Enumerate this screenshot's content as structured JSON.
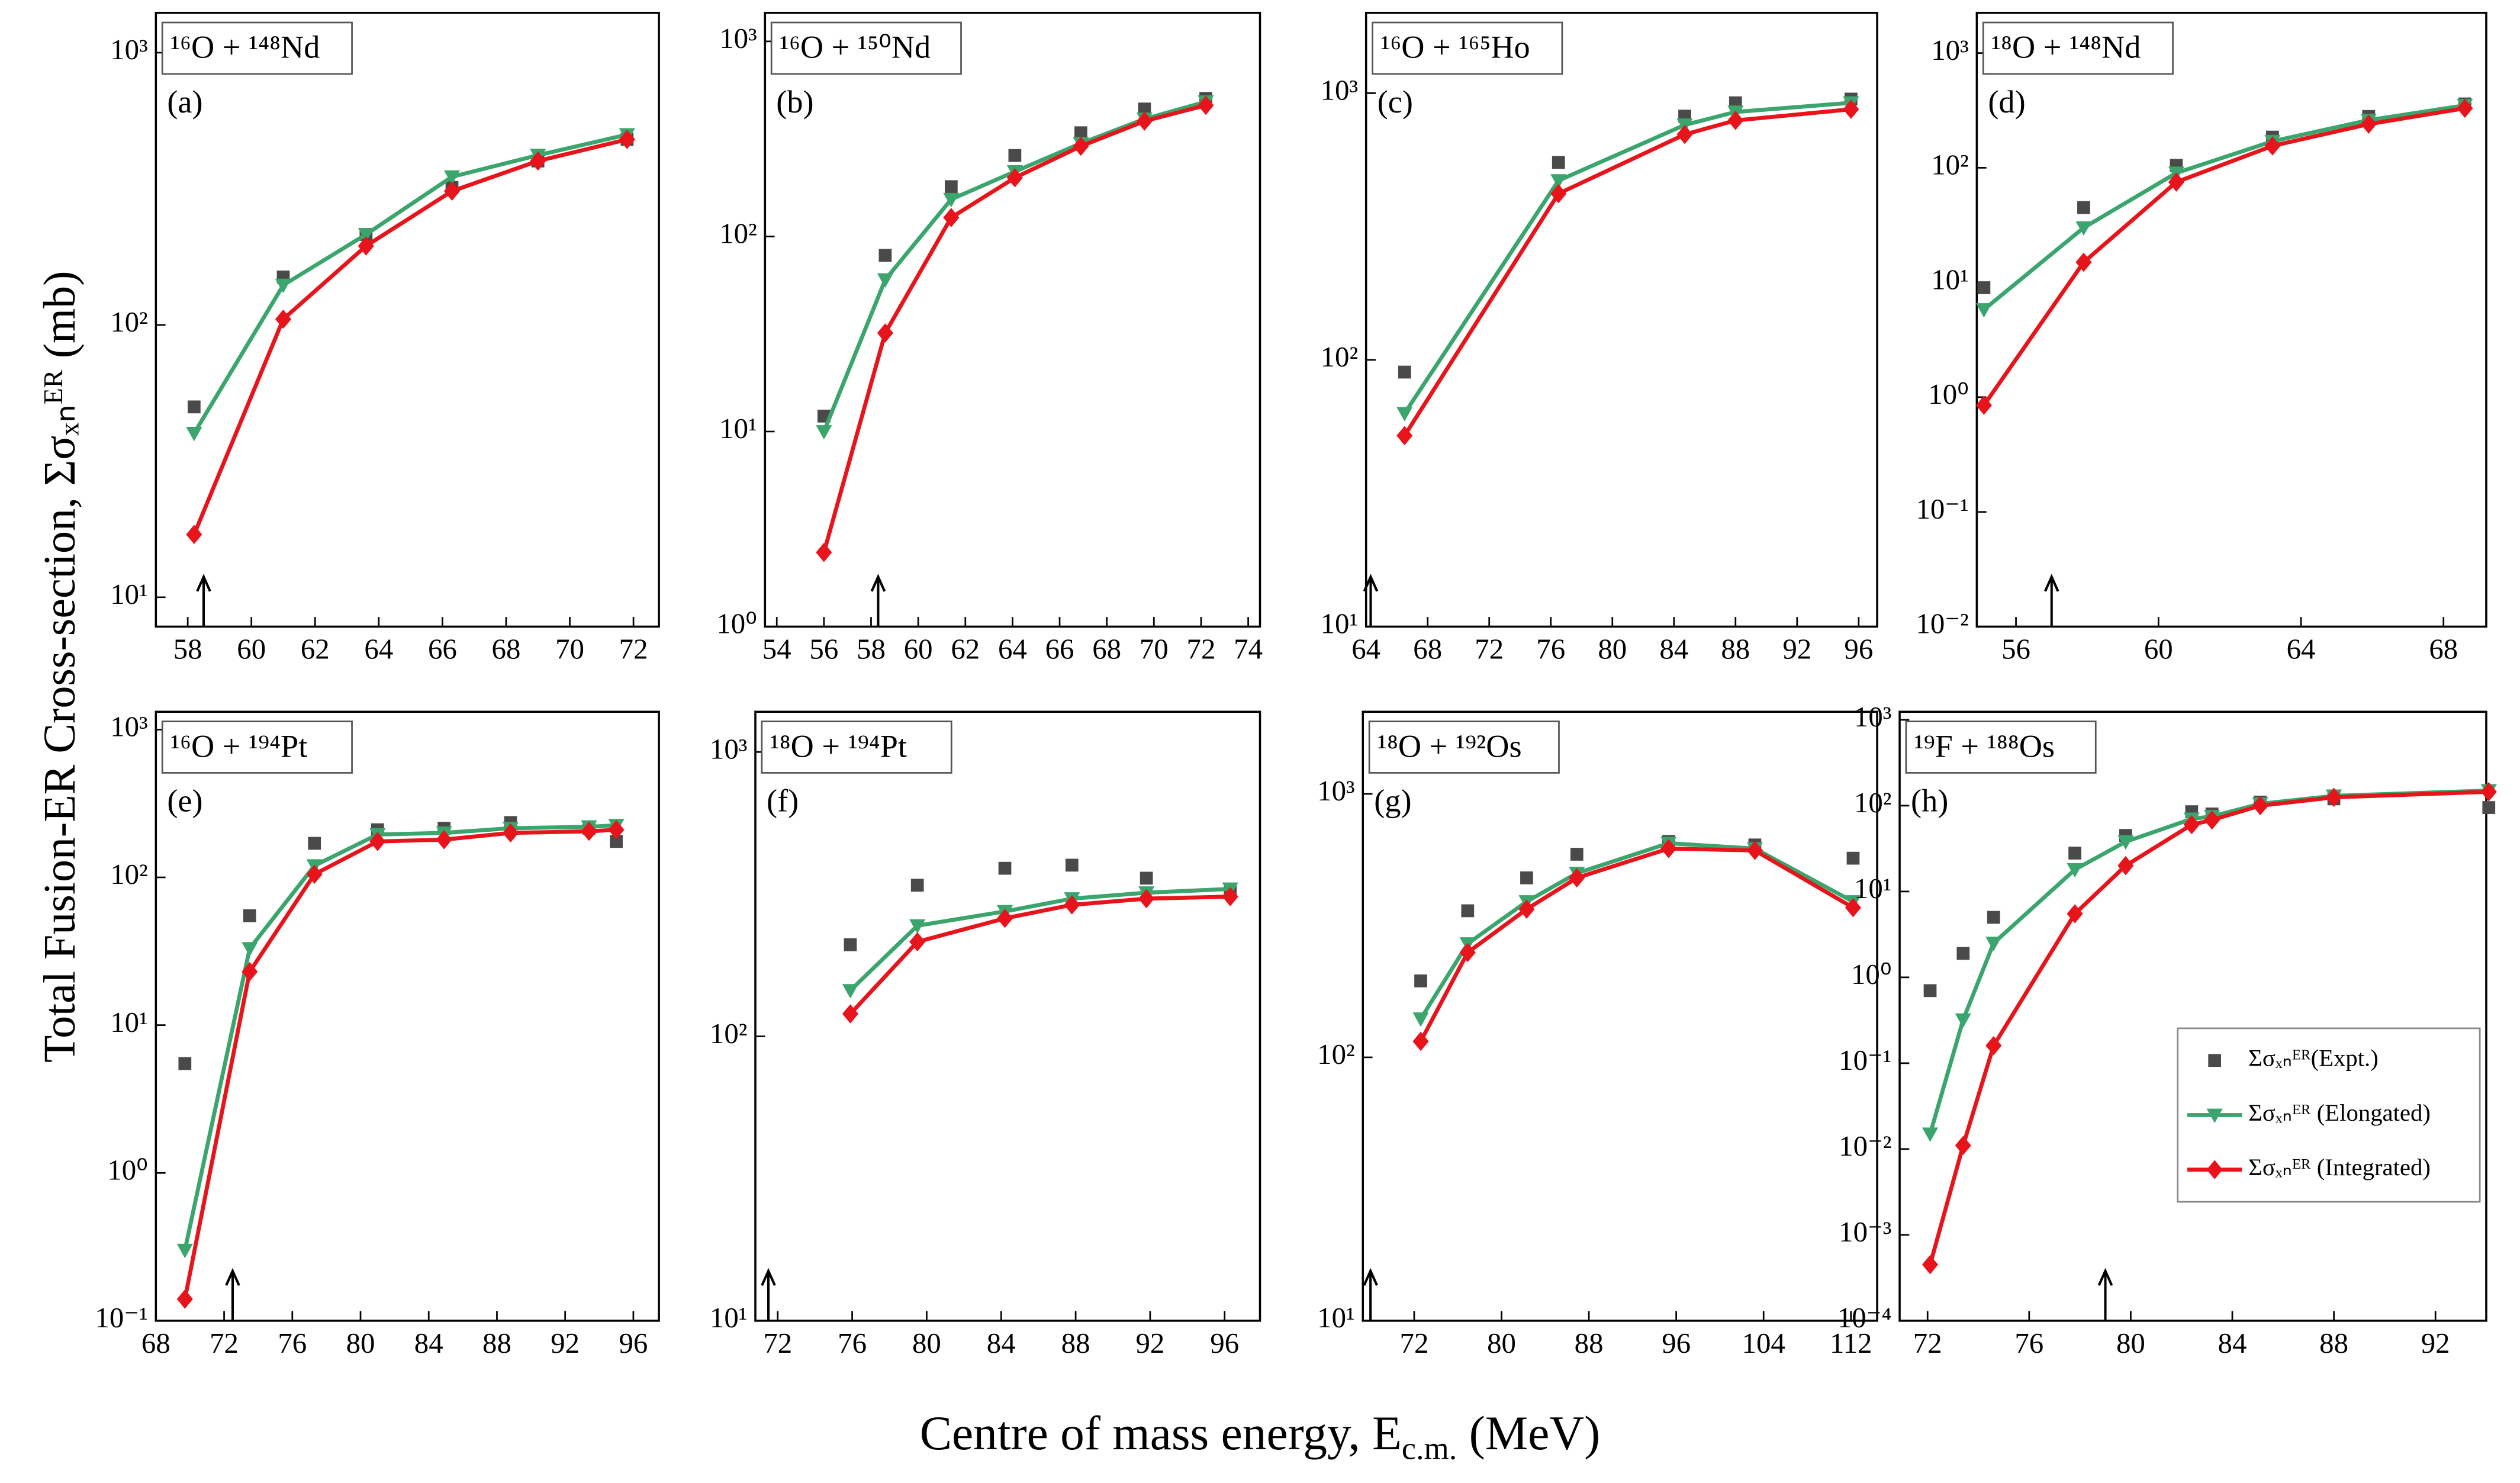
{
  "y_label": "Total Fusion-ER Cross-section, Σσₓₙᴱᴿ (mb)",
  "x_label": {
    "text": "Centre of mass energy, E",
    "sub": "c.m.",
    "unit": " (MeV)"
  },
  "chart_data": [
    {
      "type": "line",
      "title": "¹⁶O + ¹⁴⁸Nd",
      "panel_label": "(a)",
      "ylog": true,
      "x": [
        58.2,
        61,
        63.6,
        66.3,
        69,
        71.8
      ],
      "xlim": [
        57,
        72.8
      ],
      "xticks": [
        58,
        60,
        62,
        64,
        66,
        68,
        70,
        72
      ],
      "ylim": [
        7.8,
        1400
      ],
      "yticks": [
        {
          "value": 10,
          "label": "10¹"
        },
        {
          "value": 100,
          "label": "10²"
        },
        {
          "value": 1000,
          "label": "10³"
        }
      ],
      "arrow_x": 58.5,
      "series": [
        {
          "marker": "square",
          "color": "#4a4a4a",
          "values": [
            50,
            150,
            215,
            320,
            400,
            480
          ]
        },
        {
          "marker": "triangle",
          "color": "#3aa56c",
          "values": [
            40,
            140,
            215,
            350,
            420,
            500
          ]
        },
        {
          "marker": "diamond",
          "color": "#e8141c",
          "values": [
            17,
            105,
            195,
            310,
            400,
            480
          ]
        }
      ]
    },
    {
      "type": "line",
      "title": "¹⁶O + ¹⁵⁰Nd",
      "panel_label": "(b)",
      "ylog": true,
      "x": [
        56,
        58.6,
        61.4,
        64.1,
        66.9,
        69.6,
        72.2
      ],
      "xlim": [
        53.5,
        74.5
      ],
      "xticks": [
        54,
        56,
        58,
        60,
        62,
        64,
        66,
        68,
        70,
        72,
        74
      ],
      "ylim": [
        1,
        1400
      ],
      "yticks": [
        {
          "value": 1,
          "label": "10⁰"
        },
        {
          "value": 10,
          "label": "10¹"
        },
        {
          "value": 100,
          "label": "10²"
        },
        {
          "value": 1000,
          "label": "10³"
        }
      ],
      "arrow_x": 58.3,
      "series": [
        {
          "marker": "square",
          "color": "#4a4a4a",
          "values": [
            12,
            80,
            180,
            260,
            340,
            450,
            510
          ]
        },
        {
          "marker": "triangle",
          "color": "#3aa56c",
          "values": [
            10,
            60,
            155,
            215,
            300,
            400,
            490
          ]
        },
        {
          "marker": "diamond",
          "color": "#e8141c",
          "values": [
            2.4,
            32,
            125,
            200,
            290,
            390,
            470
          ]
        }
      ]
    },
    {
      "type": "line",
      "title": "¹⁶O + ¹⁶⁵Ho",
      "panel_label": "(c)",
      "ylog": true,
      "x": [
        66.5,
        76.5,
        84.7,
        88,
        95.5
      ],
      "xlim": [
        64,
        97.2
      ],
      "xticks": [
        64,
        68,
        72,
        76,
        80,
        84,
        88,
        92,
        96
      ],
      "ylim": [
        10,
        2000
      ],
      "yticks": [
        {
          "value": 10,
          "label": "10¹"
        },
        {
          "value": 100,
          "label": "10²"
        },
        {
          "value": 1000,
          "label": "10³"
        }
      ],
      "arrow_x": 64.3,
      "series": [
        {
          "marker": "square",
          "color": "#4a4a4a",
          "values": [
            90,
            550,
            820,
            920,
            950
          ]
        },
        {
          "marker": "triangle",
          "color": "#3aa56c",
          "values": [
            63,
            470,
            760,
            850,
            920
          ]
        },
        {
          "marker": "diamond",
          "color": "#e8141c",
          "values": [
            52,
            420,
            700,
            790,
            870
          ]
        }
      ]
    },
    {
      "type": "line",
      "title": "¹⁸O + ¹⁴⁸Nd",
      "panel_label": "(d)",
      "ylog": true,
      "x": [
        55.1,
        57.9,
        60.5,
        63.2,
        65.9,
        68.6
      ],
      "xlim": [
        54.9,
        69.2
      ],
      "xticks": [
        56,
        60,
        64,
        68
      ],
      "ylim": [
        0.01,
        2240
      ],
      "yticks": [
        {
          "value": 0.01,
          "label": "10⁻²"
        },
        {
          "value": 0.1,
          "label": "10⁻¹"
        },
        {
          "value": 1,
          "label": "10⁰"
        },
        {
          "value": 10,
          "label": "10¹"
        },
        {
          "value": 100,
          "label": "10²"
        },
        {
          "value": 1000,
          "label": "10³"
        }
      ],
      "arrow_x": 57,
      "series": [
        {
          "marker": "square",
          "color": "#4a4a4a",
          "values": [
            9,
            45,
            105,
            185,
            280,
            360
          ]
        },
        {
          "marker": "triangle",
          "color": "#3aa56c",
          "values": [
            5.8,
            30,
            90,
            170,
            260,
            350
          ]
        },
        {
          "marker": "diamond",
          "color": "#e8141c",
          "values": [
            0.85,
            15,
            75,
            155,
            240,
            330
          ]
        }
      ]
    },
    {
      "type": "line",
      "title": "¹⁶O + ¹⁹⁴Pt",
      "panel_label": "(e)",
      "ylog": true,
      "x": [
        69.7,
        73.5,
        77.3,
        81,
        84.9,
        88.8,
        93.4,
        95
      ],
      "xlim": [
        68,
        97.5
      ],
      "xticks": [
        68,
        72,
        76,
        80,
        84,
        88,
        92,
        96
      ],
      "ylim": [
        0.1,
        1320
      ],
      "yticks": [
        {
          "value": 0.1,
          "label": "10⁻¹"
        },
        {
          "value": 1,
          "label": "10⁰"
        },
        {
          "value": 10,
          "label": "10¹"
        },
        {
          "value": 100,
          "label": "10²"
        },
        {
          "value": 1000,
          "label": "10³"
        }
      ],
      "arrow_x": 72.5,
      "series": [
        {
          "marker": "square",
          "color": "#4a4a4a",
          "values": [
            5.5,
            55,
            170,
            210,
            215,
            235,
            215,
            175
          ]
        },
        {
          "marker": "triangle",
          "color": "#3aa56c",
          "values": [
            0.3,
            33,
            120,
            195,
            200,
            215,
            220,
            225
          ]
        },
        {
          "marker": "diamond",
          "color": "#e8141c",
          "values": [
            0.14,
            23,
            105,
            175,
            180,
            200,
            205,
            210
          ]
        }
      ]
    },
    {
      "type": "line",
      "title": "¹⁸O + ¹⁹⁴Pt",
      "panel_label": "(f)",
      "ylog": true,
      "x": [
        75.9,
        79.5,
        84.2,
        87.8,
        91.8,
        96.3
      ],
      "xlim": [
        70.8,
        97.9
      ],
      "xticks": [
        72,
        76,
        80,
        84,
        88,
        92,
        96
      ],
      "ylim": [
        10,
        1385
      ],
      "yticks": [
        {
          "value": 10,
          "label": "10¹"
        },
        {
          "value": 100,
          "label": "10²"
        },
        {
          "value": 1000,
          "label": "10³"
        }
      ],
      "arrow_x": 71.5,
      "series": [
        {
          "marker": "square",
          "color": "#4a4a4a",
          "values": [
            210,
            340,
            390,
            400,
            360,
            320
          ]
        },
        {
          "marker": "triangle",
          "color": "#3aa56c",
          "values": [
            145,
            245,
            275,
            305,
            320,
            330
          ]
        },
        {
          "marker": "diamond",
          "color": "#e8141c",
          "values": [
            120,
            215,
            260,
            290,
            305,
            310
          ]
        }
      ]
    },
    {
      "type": "line",
      "title": "¹⁸O + ¹⁹²Os",
      "panel_label": "(g)",
      "ylog": true,
      "x": [
        72.6,
        76.9,
        82.3,
        86.9,
        95.3,
        103.2,
        112.2
      ],
      "xlim": [
        67.3,
        114.4
      ],
      "xticks": [
        72,
        80,
        88,
        96,
        104,
        112
      ],
      "ylim": [
        10,
        2050
      ],
      "yticks": [
        {
          "value": 10,
          "label": "10¹"
        },
        {
          "value": 100,
          "label": "10²"
        },
        {
          "value": 1000,
          "label": "10³"
        }
      ],
      "arrow_x": 68,
      "series": [
        {
          "marker": "square",
          "color": "#4a4a4a",
          "values": [
            195,
            360,
            480,
            590,
            660,
            640,
            570
          ]
        },
        {
          "marker": "triangle",
          "color": "#3aa56c",
          "values": [
            140,
            270,
            390,
            500,
            650,
            620,
            390
          ]
        },
        {
          "marker": "diamond",
          "color": "#e8141c",
          "values": [
            115,
            250,
            365,
            480,
            620,
            610,
            370
          ]
        }
      ]
    },
    {
      "type": "line",
      "title": "¹⁹F + ¹⁸⁸Os",
      "panel_label": "(h)",
      "ylog": true,
      "legend": "lower right",
      "x": [
        72.1,
        73.4,
        74.6,
        77.8,
        79.8,
        82.4,
        83.2,
        85.1,
        88,
        94.1
      ],
      "xlim": [
        70.9,
        94.0
      ],
      "xticks": [
        72,
        76,
        80,
        84,
        88,
        92
      ],
      "ylim": [
        0.0001,
        1240
      ],
      "yticks": [
        {
          "value": 0.0001,
          "label": "10⁻⁴"
        },
        {
          "value": 0.001,
          "label": "10⁻³"
        },
        {
          "value": 0.01,
          "label": "10⁻²"
        },
        {
          "value": 0.1,
          "label": "10⁻¹"
        },
        {
          "value": 1,
          "label": "10⁰"
        },
        {
          "value": 10,
          "label": "10¹"
        },
        {
          "value": 100,
          "label": "10²"
        },
        {
          "value": 1000,
          "label": "10³"
        }
      ],
      "arrow_x": 79,
      "series": [
        {
          "name": "Σσₓₙᴱᴿ(Expt.)",
          "marker": "square",
          "color": "#4a4a4a",
          "values": [
            0.7,
            1.9,
            5,
            28,
            45,
            85,
            80,
            110,
            120,
            95
          ]
        },
        {
          "name": "Σσₓₙᴱᴿ (Elongated)",
          "marker": "triangle",
          "color": "#3aa56c",
          "values": [
            0.015,
            0.32,
            2.5,
            18,
            38,
            70,
            75,
            105,
            130,
            150
          ]
        },
        {
          "name": "Σσₓₙᴱᴿ (Integrated)",
          "marker": "diamond",
          "color": "#e8141c",
          "values": [
            0.00045,
            0.011,
            0.16,
            5.5,
            20,
            60,
            68,
            100,
            125,
            145
          ]
        }
      ]
    }
  ]
}
